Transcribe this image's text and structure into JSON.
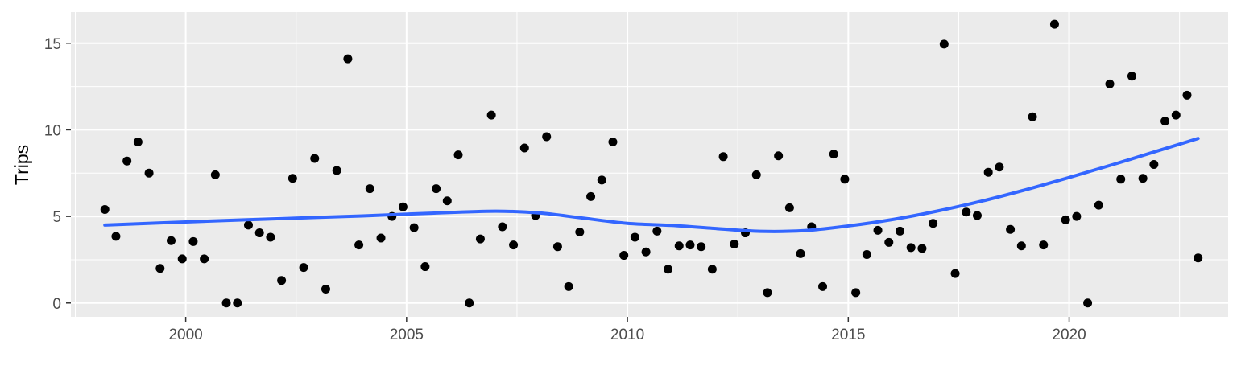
{
  "chart_data": {
    "type": "scatter",
    "title": "",
    "xlabel": "",
    "ylabel": "Trips",
    "xlim": [
      1997.4,
      2023.6
    ],
    "ylim": [
      -0.8,
      16.8
    ],
    "x_ticks": [
      2000,
      2005,
      2010,
      2015,
      2020
    ],
    "x_tick_labels": [
      "2000",
      "2005",
      "2010",
      "2015",
      "2020"
    ],
    "y_ticks": [
      0,
      5,
      10,
      15
    ],
    "y_tick_labels": [
      "0",
      "5",
      "10",
      "15"
    ],
    "grid": true,
    "panel_background": "#ebebeb",
    "point_color": "#000000",
    "smooth_color": "#3366ff",
    "series": [
      {
        "type": "scatter",
        "points": [
          [
            1998.17,
            5.4
          ],
          [
            1998.42,
            3.85
          ],
          [
            1998.67,
            8.2
          ],
          [
            1998.92,
            9.3
          ],
          [
            1999.17,
            7.5
          ],
          [
            1999.42,
            2.0
          ],
          [
            1999.67,
            3.6
          ],
          [
            1999.92,
            2.55
          ],
          [
            2000.17,
            3.55
          ],
          [
            2000.42,
            2.55
          ],
          [
            2000.67,
            7.4
          ],
          [
            2000.92,
            0.0
          ],
          [
            2001.17,
            0.0
          ],
          [
            2001.42,
            4.5
          ],
          [
            2001.67,
            4.05
          ],
          [
            2001.92,
            3.8
          ],
          [
            2002.17,
            1.3
          ],
          [
            2002.42,
            7.2
          ],
          [
            2002.67,
            2.05
          ],
          [
            2002.92,
            8.35
          ],
          [
            2003.17,
            0.8
          ],
          [
            2003.42,
            7.65
          ],
          [
            2003.67,
            14.1
          ],
          [
            2003.92,
            3.35
          ],
          [
            2004.17,
            6.6
          ],
          [
            2004.42,
            3.75
          ],
          [
            2004.67,
            5.0
          ],
          [
            2004.92,
            5.55
          ],
          [
            2005.17,
            4.35
          ],
          [
            2005.42,
            2.1
          ],
          [
            2005.67,
            6.6
          ],
          [
            2005.92,
            5.9
          ],
          [
            2006.17,
            8.55
          ],
          [
            2006.42,
            0.0
          ],
          [
            2006.67,
            3.7
          ],
          [
            2006.92,
            10.85
          ],
          [
            2007.17,
            4.4
          ],
          [
            2007.42,
            3.35
          ],
          [
            2007.67,
            8.95
          ],
          [
            2007.92,
            5.05
          ],
          [
            2008.17,
            9.6
          ],
          [
            2008.42,
            3.25
          ],
          [
            2008.67,
            0.95
          ],
          [
            2008.92,
            4.1
          ],
          [
            2009.17,
            6.15
          ],
          [
            2009.42,
            7.1
          ],
          [
            2009.67,
            9.3
          ],
          [
            2009.92,
            2.75
          ],
          [
            2010.17,
            3.8
          ],
          [
            2010.42,
            2.95
          ],
          [
            2010.67,
            4.15
          ],
          [
            2010.92,
            1.95
          ],
          [
            2011.17,
            3.3
          ],
          [
            2011.42,
            3.35
          ],
          [
            2011.67,
            3.25
          ],
          [
            2011.92,
            1.95
          ],
          [
            2012.17,
            8.45
          ],
          [
            2012.42,
            3.4
          ],
          [
            2012.67,
            4.05
          ],
          [
            2012.92,
            7.4
          ],
          [
            2013.17,
            0.6
          ],
          [
            2013.42,
            8.5
          ],
          [
            2013.67,
            5.5
          ],
          [
            2013.92,
            2.85
          ],
          [
            2014.17,
            4.4
          ],
          [
            2014.42,
            0.95
          ],
          [
            2014.67,
            8.6
          ],
          [
            2014.92,
            7.15
          ],
          [
            2015.17,
            0.6
          ],
          [
            2015.42,
            2.8
          ],
          [
            2015.67,
            4.2
          ],
          [
            2015.92,
            3.5
          ],
          [
            2016.17,
            4.15
          ],
          [
            2016.42,
            3.2
          ],
          [
            2016.67,
            3.15
          ],
          [
            2016.92,
            4.6
          ],
          [
            2017.17,
            14.95
          ],
          [
            2017.42,
            1.7
          ],
          [
            2017.67,
            5.25
          ],
          [
            2017.92,
            5.05
          ],
          [
            2018.17,
            7.55
          ],
          [
            2018.42,
            7.85
          ],
          [
            2018.67,
            4.25
          ],
          [
            2018.92,
            3.3
          ],
          [
            2019.17,
            10.75
          ],
          [
            2019.42,
            3.35
          ],
          [
            2019.67,
            16.1
          ],
          [
            2019.92,
            4.8
          ],
          [
            2020.17,
            5.0
          ],
          [
            2020.42,
            0.0
          ],
          [
            2020.67,
            5.65
          ],
          [
            2020.92,
            12.65
          ],
          [
            2021.17,
            7.15
          ],
          [
            2021.42,
            13.1
          ],
          [
            2021.67,
            7.2
          ],
          [
            2021.92,
            8.0
          ],
          [
            2022.17,
            10.5
          ],
          [
            2022.42,
            10.85
          ],
          [
            2022.67,
            12.0
          ],
          [
            2022.92,
            2.6
          ]
        ]
      },
      {
        "type": "line",
        "points": [
          [
            1998.17,
            4.5
          ],
          [
            2000.0,
            4.68
          ],
          [
            2002.0,
            4.86
          ],
          [
            2004.0,
            5.03
          ],
          [
            2005.5,
            5.18
          ],
          [
            2007.0,
            5.3
          ],
          [
            2008.0,
            5.2
          ],
          [
            2009.0,
            4.9
          ],
          [
            2010.0,
            4.6
          ],
          [
            2011.0,
            4.48
          ],
          [
            2012.0,
            4.3
          ],
          [
            2013.0,
            4.14
          ],
          [
            2014.0,
            4.18
          ],
          [
            2015.0,
            4.45
          ],
          [
            2016.0,
            4.82
          ],
          [
            2017.0,
            5.3
          ],
          [
            2018.0,
            5.87
          ],
          [
            2019.0,
            6.53
          ],
          [
            2020.0,
            7.25
          ],
          [
            2021.0,
            8.0
          ],
          [
            2022.0,
            8.78
          ],
          [
            2022.92,
            9.5
          ]
        ]
      }
    ]
  }
}
